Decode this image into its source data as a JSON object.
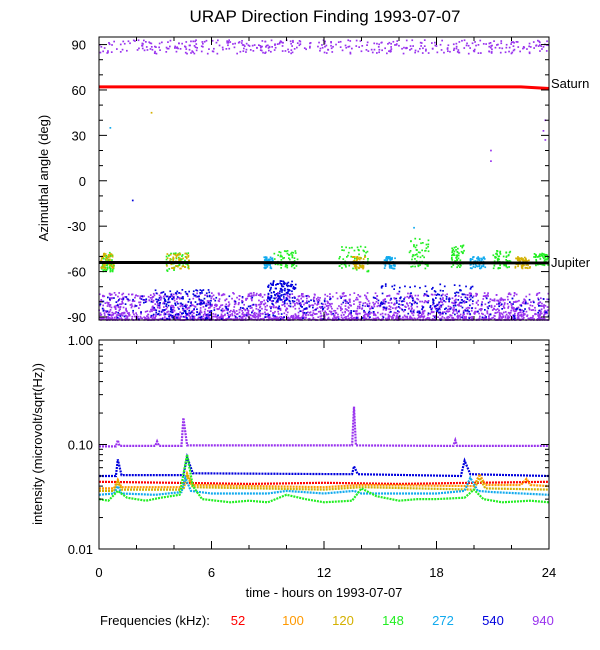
{
  "chart_data": [
    {
      "type": "scatter",
      "title": "URAP Direction Finding  1993-07-07",
      "ylabel": "Azimuthal angle (deg)",
      "ylim": [
        -92,
        95
      ],
      "xlim": [
        0,
        24
      ],
      "yticks": [
        90,
        60,
        30,
        0,
        -30,
        -60,
        -90
      ],
      "grid": false,
      "reference_lines": [
        {
          "name": "Saturn",
          "color": "#ff0000",
          "points": [
            [
              0,
              62
            ],
            [
              22.5,
              62
            ],
            [
              24,
              61
            ]
          ]
        },
        {
          "name": "Jupiter",
          "color": "#000000",
          "points": [
            [
              0,
              -54
            ],
            [
              24,
              -54.3
            ]
          ]
        }
      ],
      "clusters": [
        {
          "freq": "148",
          "x": [
            0.1,
            0.8
          ],
          "y": [
            -60,
            -47
          ]
        },
        {
          "freq": "120",
          "x": [
            0.1,
            0.8
          ],
          "y": [
            -58,
            -48
          ]
        },
        {
          "freq": "148",
          "x": [
            3.6,
            4.8
          ],
          "y": [
            -60,
            -47
          ]
        },
        {
          "freq": "120",
          "x": [
            3.6,
            4.8
          ],
          "y": [
            -58,
            -48
          ]
        },
        {
          "freq": "148",
          "x": [
            9.3,
            10.6
          ],
          "y": [
            -58,
            -46
          ]
        },
        {
          "freq": "272",
          "x": [
            8.8,
            9.3
          ],
          "y": [
            -58,
            -50
          ]
        },
        {
          "freq": "148",
          "x": [
            12.8,
            14.4
          ],
          "y": [
            -60,
            -43
          ]
        },
        {
          "freq": "120",
          "x": [
            13.5,
            14.2
          ],
          "y": [
            -58,
            -50
          ]
        },
        {
          "freq": "272",
          "x": [
            15.2,
            15.8
          ],
          "y": [
            -58,
            -50
          ]
        },
        {
          "freq": "148",
          "x": [
            16.5,
            17.6
          ],
          "y": [
            -58,
            -38
          ]
        },
        {
          "freq": "148",
          "x": [
            18.8,
            19.5
          ],
          "y": [
            -58,
            -42
          ]
        },
        {
          "freq": "272",
          "x": [
            19.8,
            20.6
          ],
          "y": [
            -58,
            -50
          ]
        },
        {
          "freq": "148",
          "x": [
            21.0,
            22.0
          ],
          "y": [
            -58,
            -46
          ]
        },
        {
          "freq": "120",
          "x": [
            22.2,
            23.0
          ],
          "y": [
            -58,
            -50
          ]
        },
        {
          "freq": "148",
          "x": [
            23.2,
            24.0
          ],
          "y": [
            -56,
            -48
          ]
        }
      ],
      "band_940": {
        "top": [
          84,
          93
        ],
        "bottom": [
          -92,
          -74
        ]
      },
      "band_540": [
        [
          3,
          6,
          -92,
          -72
        ],
        [
          9,
          10.5,
          -80,
          -66
        ],
        [
          15,
          20,
          -88,
          -68
        ]
      ],
      "stray_points": [
        {
          "freq": "272",
          "x": 0.6,
          "y": 35
        },
        {
          "freq": "120",
          "x": 2.8,
          "y": 45
        },
        {
          "freq": "540",
          "x": 1.8,
          "y": -13
        },
        {
          "freq": "940",
          "x": 20.9,
          "y": 13
        },
        {
          "freq": "940",
          "x": 20.9,
          "y": 20
        },
        {
          "freq": "940",
          "x": 23.7,
          "y": 33
        },
        {
          "freq": "940",
          "x": 23.8,
          "y": 40
        },
        {
          "freq": "940",
          "x": 23.8,
          "y": 27
        },
        {
          "freq": "272",
          "x": 16.8,
          "y": -31
        }
      ]
    },
    {
      "type": "line",
      "ylabel": "intensity (microvolt/sqrt(Hz))",
      "xlabel": "time - hours on 1993-07-07",
      "scale_y": "log",
      "ylim": [
        0.01,
        1.0
      ],
      "xlim": [
        0,
        24
      ],
      "xticks": [
        0,
        6,
        12,
        18,
        24
      ],
      "yticks": [
        1.0,
        0.1,
        0.01
      ],
      "ytick_labels": [
        "1.00",
        "0.10",
        "0.01"
      ],
      "series": [
        {
          "name": "940",
          "points": [
            [
              0,
              0.096
            ],
            [
              0.9,
              0.096
            ],
            [
              1.0,
              0.11
            ],
            [
              1.1,
              0.097
            ],
            [
              3.0,
              0.097
            ],
            [
              3.1,
              0.107
            ],
            [
              3.2,
              0.097
            ],
            [
              4.4,
              0.097
            ],
            [
              4.5,
              0.18
            ],
            [
              4.7,
              0.098
            ],
            [
              13.5,
              0.098
            ],
            [
              13.6,
              0.23
            ],
            [
              13.7,
              0.098
            ],
            [
              18.9,
              0.097
            ],
            [
              19.0,
              0.11
            ],
            [
              19.1,
              0.097
            ],
            [
              24,
              0.097
            ]
          ]
        },
        {
          "name": "540",
          "points": [
            [
              0,
              0.05
            ],
            [
              0.9,
              0.05
            ],
            [
              1.0,
              0.072
            ],
            [
              1.2,
              0.051
            ],
            [
              4.5,
              0.051
            ],
            [
              4.7,
              0.076
            ],
            [
              5.0,
              0.053
            ],
            [
              13.5,
              0.052
            ],
            [
              13.6,
              0.062
            ],
            [
              13.8,
              0.052
            ],
            [
              19.3,
              0.05
            ],
            [
              19.5,
              0.07
            ],
            [
              19.8,
              0.052
            ],
            [
              24,
              0.05
            ]
          ]
        },
        {
          "name": "52",
          "points": [
            [
              0,
              0.044
            ],
            [
              4,
              0.043
            ],
            [
              8,
              0.042
            ],
            [
              12,
              0.043
            ],
            [
              16,
              0.042
            ],
            [
              20,
              0.043
            ],
            [
              24,
              0.044
            ]
          ]
        },
        {
          "name": "100",
          "points": [
            [
              0,
              0.038
            ],
            [
              0.8,
              0.038
            ],
            [
              1.0,
              0.046
            ],
            [
              1.2,
              0.039
            ],
            [
              4.5,
              0.039
            ],
            [
              4.7,
              0.053
            ],
            [
              5.0,
              0.041
            ],
            [
              12,
              0.039
            ],
            [
              14,
              0.041
            ],
            [
              20,
              0.04
            ],
            [
              20.3,
              0.052
            ],
            [
              20.6,
              0.041
            ],
            [
              22.5,
              0.041
            ],
            [
              22.8,
              0.047
            ],
            [
              23,
              0.041
            ],
            [
              24,
              0.04
            ]
          ]
        },
        {
          "name": "120",
          "points": [
            [
              0,
              0.036
            ],
            [
              0.8,
              0.036
            ],
            [
              1.0,
              0.044
            ],
            [
              1.2,
              0.037
            ],
            [
              4.5,
              0.037
            ],
            [
              4.7,
              0.05
            ],
            [
              5.0,
              0.039
            ],
            [
              12,
              0.037
            ],
            [
              14,
              0.039
            ],
            [
              20,
              0.037
            ],
            [
              20.3,
              0.048
            ],
            [
              20.6,
              0.038
            ],
            [
              24,
              0.037
            ]
          ]
        },
        {
          "name": "272",
          "points": [
            [
              0,
              0.033
            ],
            [
              0.8,
              0.034
            ],
            [
              1.0,
              0.04
            ],
            [
              1.2,
              0.034
            ],
            [
              3,
              0.033
            ],
            [
              4.4,
              0.035
            ],
            [
              4.6,
              0.048
            ],
            [
              4.9,
              0.036
            ],
            [
              6,
              0.034
            ],
            [
              9,
              0.034
            ],
            [
              10,
              0.036
            ],
            [
              12,
              0.034
            ],
            [
              13.6,
              0.036
            ],
            [
              14,
              0.034
            ],
            [
              16,
              0.034
            ],
            [
              18,
              0.034
            ],
            [
              19.5,
              0.036
            ],
            [
              19.8,
              0.048
            ],
            [
              20.2,
              0.036
            ],
            [
              21,
              0.035
            ],
            [
              24,
              0.033
            ]
          ]
        },
        {
          "name": "148",
          "points": [
            [
              0,
              0.03
            ],
            [
              0.5,
              0.029
            ],
            [
              1.0,
              0.036
            ],
            [
              1.5,
              0.031
            ],
            [
              2.5,
              0.029
            ],
            [
              3.3,
              0.031
            ],
            [
              4.3,
              0.033
            ],
            [
              4.7,
              0.08
            ],
            [
              5.0,
              0.04
            ],
            [
              5.5,
              0.03
            ],
            [
              7,
              0.028
            ],
            [
              8,
              0.029
            ],
            [
              9,
              0.028
            ],
            [
              10,
              0.033
            ],
            [
              11,
              0.03
            ],
            [
              12,
              0.028
            ],
            [
              13.5,
              0.029
            ],
            [
              14,
              0.038
            ],
            [
              14.8,
              0.032
            ],
            [
              16,
              0.029
            ],
            [
              17,
              0.03
            ],
            [
              18,
              0.03
            ],
            [
              19.5,
              0.031
            ],
            [
              20,
              0.037
            ],
            [
              20.5,
              0.03
            ],
            [
              21.5,
              0.028
            ],
            [
              23,
              0.029
            ],
            [
              24,
              0.028
            ]
          ]
        }
      ]
    }
  ],
  "legend": {
    "label": "Frequencies (kHz):",
    "items": [
      {
        "name": "52",
        "color": "#ff0000"
      },
      {
        "name": "100",
        "color": "#ff9900"
      },
      {
        "name": "120",
        "color": "#d4b000"
      },
      {
        "name": "148",
        "color": "#22ee22"
      },
      {
        "name": "272",
        "color": "#11aaee"
      },
      {
        "name": "540",
        "color": "#0000dd"
      },
      {
        "name": "940",
        "color": "#9933ee"
      }
    ]
  }
}
